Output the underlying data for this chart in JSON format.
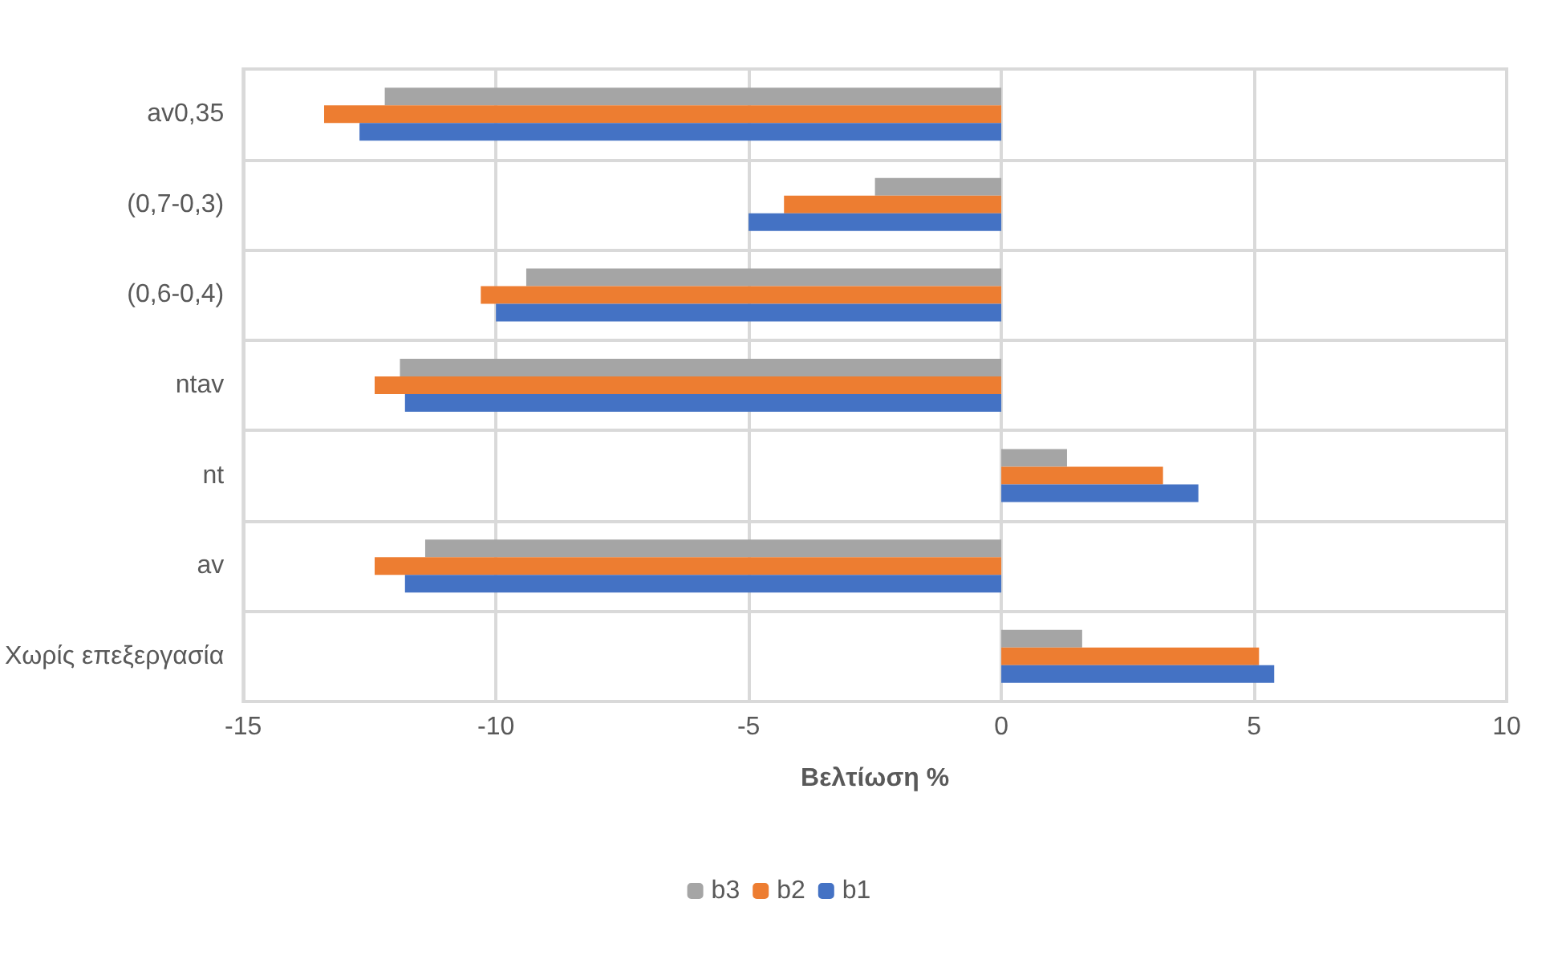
{
  "chart_data": {
    "type": "bar",
    "orientation": "horizontal",
    "xlabel": "Βελτίωση %",
    "categories": [
      "av0,35",
      "(0,7-0,3)",
      "(0,6-0,4)",
      "ntav",
      "nt",
      "av",
      "Χωρίς επεξεργασία"
    ],
    "series": [
      {
        "name": "b3",
        "color": "#a5a5a5",
        "values": [
          -12.2,
          -2.5,
          -9.4,
          -11.9,
          1.3,
          -11.4,
          1.6
        ]
      },
      {
        "name": "b2",
        "color": "#ed7d31",
        "values": [
          -13.4,
          -4.3,
          -10.3,
          -12.4,
          3.2,
          -12.4,
          5.1
        ]
      },
      {
        "name": "b1",
        "color": "#4472c4",
        "values": [
          -12.7,
          -5.0,
          -10.0,
          -11.8,
          3.9,
          -11.8,
          5.4
        ]
      }
    ],
    "xlim": [
      -15,
      10
    ],
    "xticks": [
      -15,
      -10,
      -5,
      0,
      5,
      10
    ],
    "grid": true,
    "legend": "bottom"
  }
}
